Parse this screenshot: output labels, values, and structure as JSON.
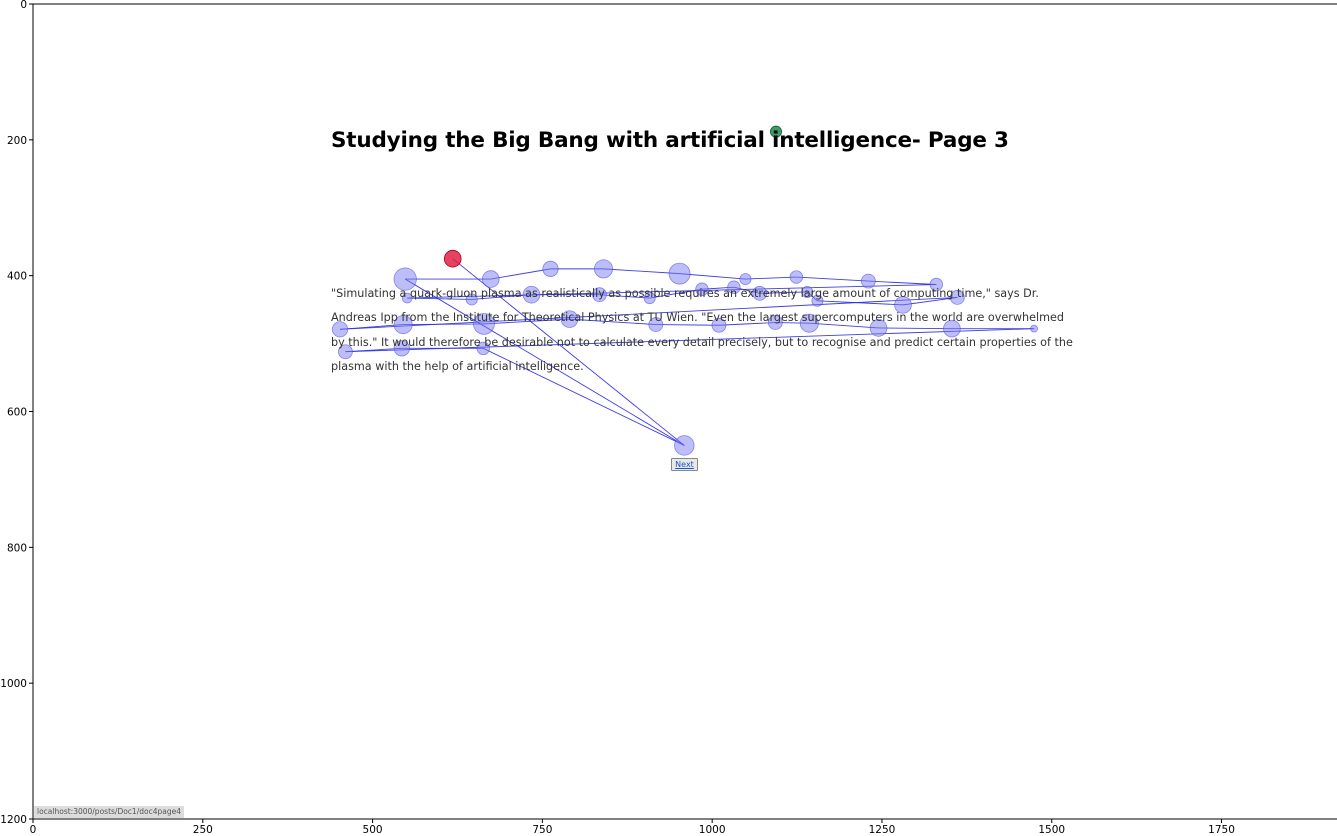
{
  "page": {
    "title": "Studying the Big Bang with artificial intelligence- Page 3",
    "paragraph_lines": [
      "\"Simulating a quark-gluon plasma as realistically as possible requires an extremely large amount of computing time,\" says Dr.",
      "Andreas Ipp from the Institute for Theoretical Physics at TU Wien. \"Even the largest supercomputers in the world are overwhelmed",
      "by this.\" It would therefore be desirable not to calculate every detail precisely, but to recognise and predict certain properties of the",
      "plasma with the help of artificial intelligence."
    ],
    "next_button": "Next",
    "status_url": "localhost:3000/posts/Doc1/doc4page4"
  },
  "chart_data": {
    "type": "scatter",
    "title": "",
    "xlabel": "",
    "ylabel": "",
    "xlim": [
      0,
      1920
    ],
    "ylim": [
      1200,
      0
    ],
    "y_inverted": true,
    "grid": false,
    "x_ticks": [
      0,
      250,
      500,
      750,
      1000,
      1250,
      1500,
      1750
    ],
    "y_ticks": [
      0,
      200,
      400,
      600,
      800,
      1000,
      1200
    ],
    "colors": {
      "fixation_fill": "#7b7bf2",
      "fixation_stroke": "#4848e0",
      "path_line": "#2a2adf",
      "start_point": "#e0143c",
      "gaze_point": "#1f8a4c"
    },
    "special_points": {
      "start": {
        "x": 618,
        "y": 375,
        "r": 12
      },
      "gaze": {
        "x": 1094,
        "y": 188,
        "r": 8
      }
    },
    "fixations": [
      {
        "x": 959,
        "y": 650,
        "r": 14
      },
      {
        "x": 548,
        "y": 405,
        "r": 16
      },
      {
        "x": 674,
        "y": 405,
        "r": 12
      },
      {
        "x": 762,
        "y": 390,
        "r": 11
      },
      {
        "x": 840,
        "y": 390,
        "r": 13
      },
      {
        "x": 952,
        "y": 397,
        "r": 15
      },
      {
        "x": 1049,
        "y": 405,
        "r": 8
      },
      {
        "x": 1124,
        "y": 402,
        "r": 9
      },
      {
        "x": 1230,
        "y": 408,
        "r": 10
      },
      {
        "x": 1330,
        "y": 413,
        "r": 9
      },
      {
        "x": 551,
        "y": 433,
        "r": 7
      },
      {
        "x": 646,
        "y": 435,
        "r": 8
      },
      {
        "x": 734,
        "y": 428,
        "r": 12
      },
      {
        "x": 834,
        "y": 428,
        "r": 10
      },
      {
        "x": 908,
        "y": 433,
        "r": 8
      },
      {
        "x": 985,
        "y": 420,
        "r": 9
      },
      {
        "x": 1032,
        "y": 417,
        "r": 9
      },
      {
        "x": 1070,
        "y": 426,
        "r": 10
      },
      {
        "x": 1140,
        "y": 424,
        "r": 8
      },
      {
        "x": 1155,
        "y": 437,
        "r": 8
      },
      {
        "x": 1281,
        "y": 443,
        "r": 12
      },
      {
        "x": 1361,
        "y": 432,
        "r": 10
      },
      {
        "x": 452,
        "y": 479,
        "r": 11
      },
      {
        "x": 545,
        "y": 472,
        "r": 13
      },
      {
        "x": 664,
        "y": 471,
        "r": 15
      },
      {
        "x": 790,
        "y": 464,
        "r": 12
      },
      {
        "x": 917,
        "y": 472,
        "r": 10
      },
      {
        "x": 1010,
        "y": 473,
        "r": 10
      },
      {
        "x": 1093,
        "y": 469,
        "r": 10
      },
      {
        "x": 1143,
        "y": 470,
        "r": 13
      },
      {
        "x": 1245,
        "y": 477,
        "r": 12
      },
      {
        "x": 1353,
        "y": 478,
        "r": 12
      },
      {
        "x": 1474,
        "y": 478,
        "r": 5
      },
      {
        "x": 460,
        "y": 512,
        "r": 10
      },
      {
        "x": 543,
        "y": 507,
        "r": 11
      },
      {
        "x": 663,
        "y": 507,
        "r": 9
      }
    ],
    "path_sequence": [
      "start",
      0,
      1,
      2,
      3,
      4,
      5,
      6,
      7,
      8,
      9,
      10,
      11,
      12,
      13,
      14,
      15,
      16,
      17,
      18,
      19,
      20,
      21,
      22,
      23,
      24,
      25,
      26,
      27,
      28,
      29,
      30,
      31,
      32,
      33,
      34,
      35,
      0
    ]
  }
}
